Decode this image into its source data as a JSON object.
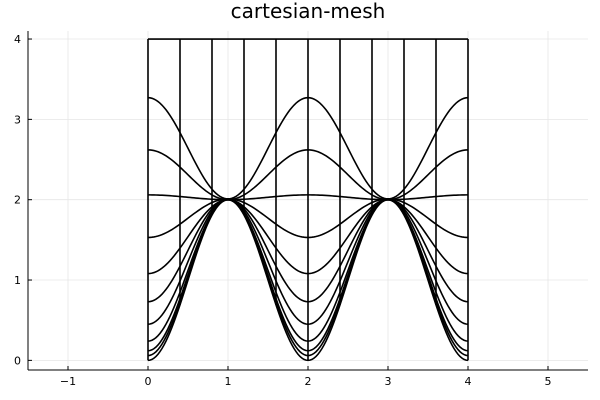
{
  "chart_data": {
    "type": "line",
    "title": "cartesian-mesh",
    "xlabel": "",
    "ylabel": "",
    "xlim": [
      -1.5,
      5.5
    ],
    "ylim": [
      -0.12,
      4.1
    ],
    "xticks": [
      -1,
      0,
      1,
      2,
      3,
      4,
      5
    ],
    "yticks": [
      0,
      1,
      2,
      3,
      4
    ],
    "xtick_labels": [
      "−1",
      "0",
      "1",
      "2",
      "3",
      "4",
      "5"
    ],
    "ytick_labels": [
      "0",
      "1",
      "2",
      "3",
      "4"
    ],
    "grid": true,
    "legend": "none",
    "line_color": "#000000",
    "horizontal_curves": {
      "x_range": [
        0,
        4
      ],
      "curves": [
        {
          "base": 0,
          "amplitude": 1.0
        },
        {
          "base": 0.06,
          "amplitude": 0.97
        },
        {
          "base": 0.12,
          "amplitude": 0.94
        },
        {
          "base": 0.24,
          "amplitude": 0.88
        },
        {
          "base": 0.45,
          "amplitude": 0.78
        },
        {
          "base": 0.73,
          "amplitude": 0.64
        },
        {
          "base": 1.08,
          "amplitude": 0.46
        },
        {
          "base": 1.53,
          "amplitude": 0.24
        },
        {
          "base": 2.06,
          "amplitude": -0.03
        },
        {
          "base": 2.62,
          "amplitude": -0.31
        },
        {
          "base": 3.27,
          "amplitude": -0.63
        }
      ]
    },
    "vertical_lines": {
      "x": [
        0,
        0.4,
        0.8,
        1.2,
        1.6,
        2.0,
        2.4,
        2.8,
        3.2,
        3.6,
        4.0
      ],
      "y_top": 4.0
    }
  }
}
